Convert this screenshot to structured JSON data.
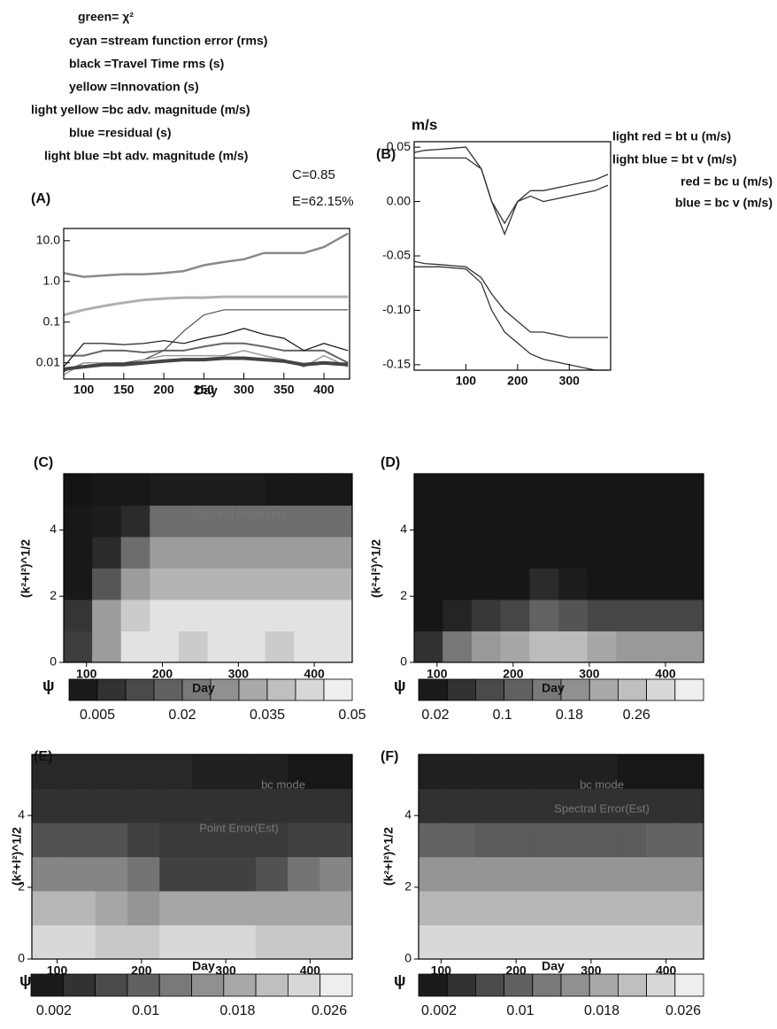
{
  "chart_data": [
    {
      "type": "line",
      "panel_label": "(A)",
      "x_label": "Day",
      "log_y": true,
      "annotations": [
        "C=0.85",
        "E=62.15%"
      ],
      "x": [
        75,
        100,
        125,
        150,
        175,
        200,
        225,
        250,
        275,
        300,
        325,
        350,
        375,
        400,
        430
      ],
      "xlim": [
        75,
        432
      ],
      "xticks": [
        100,
        150,
        200,
        250,
        300,
        350,
        400
      ],
      "ylim": [
        0.004,
        20
      ],
      "yticks": [
        0.01,
        0.1,
        {
          "value": 1,
          "label": "1.0"
        },
        {
          "value": 10,
          "label": "10.0"
        }
      ],
      "series": [
        {
          "name": "green= χ²",
          "color": "#8a8a8a",
          "values": [
            1.6,
            1.3,
            1.4,
            1.5,
            1.5,
            1.6,
            1.8,
            2.5,
            3,
            3.5,
            5,
            5,
            5,
            7,
            15
          ]
        },
        {
          "name": "cyan =stream function error (rms)",
          "color": "#b0b0b0",
          "values": [
            0.15,
            0.2,
            0.25,
            0.3,
            0.35,
            0.38,
            0.4,
            0.4,
            0.42,
            0.42,
            0.42,
            0.42,
            0.42,
            0.42,
            0.42
          ]
        },
        {
          "name": "black =Travel Time rms (s)",
          "color": "#333333",
          "values": [
            0.006,
            0.01,
            0.01,
            0.01,
            0.012,
            0.02,
            0.06,
            0.15,
            0.2,
            0.2,
            0.2,
            0.2,
            0.2,
            0.2,
            0.2
          ]
        },
        {
          "name": "yellow =Innovation (s)",
          "color": "#666666",
          "values": [
            0.015,
            0.015,
            0.02,
            0.02,
            0.018,
            0.02,
            0.02,
            0.025,
            0.03,
            0.03,
            0.025,
            0.02,
            0.02,
            0.02,
            0.01
          ]
        },
        {
          "name": "light yellow =bc adv. magnitude (m/s)",
          "color": "#9a9a9a",
          "values": [
            0.005,
            0.01,
            0.01,
            0.009,
            0.012,
            0.015,
            0.015,
            0.015,
            0.015,
            0.02,
            0.015,
            0.012,
            0.008,
            0.015,
            0.008
          ]
        },
        {
          "name": "blue =residual (s)",
          "color": "#111111",
          "values": [
            0.008,
            0.03,
            0.03,
            0.028,
            0.03,
            0.035,
            0.03,
            0.04,
            0.05,
            0.07,
            0.05,
            0.04,
            0.02,
            0.03,
            0.02
          ]
        },
        {
          "name": "light blue =bt adv. magnitude (m/s)",
          "color": "#444444",
          "values": [
            0.007,
            0.008,
            0.009,
            0.009,
            0.01,
            0.011,
            0.012,
            0.012,
            0.013,
            0.013,
            0.012,
            0.011,
            0.009,
            0.01,
            0.009
          ]
        }
      ]
    },
    {
      "type": "line",
      "panel_label": "(B)",
      "y_label": "m/s",
      "x": [
        0,
        20,
        50,
        100,
        130,
        150,
        175,
        200,
        225,
        250,
        300,
        350,
        375
      ],
      "xlim": [
        0,
        380
      ],
      "xticks": [
        100,
        200,
        300
      ],
      "ylim": [
        -0.155,
        0.055
      ],
      "yticks": [
        -0.15,
        {
          "value": -0.1,
          "label": "-0.10"
        },
        -0.05,
        {
          "value": 0,
          "label": "0.00"
        },
        0.05
      ],
      "series": [
        {
          "name": "light red = bt u  (m/s)",
          "color": "#333333",
          "values": [
            0.045,
            0.047,
            0.048,
            0.05,
            0.03,
            0.0,
            -0.02,
            0.0,
            0.01,
            0.01,
            0.015,
            0.02,
            0.025
          ]
        },
        {
          "name": "light blue = bt v  (m/s)",
          "color": "#333333",
          "values": [
            0.04,
            0.04,
            0.04,
            0.04,
            0.03,
            0.0,
            -0.03,
            0.0,
            0.005,
            0.0,
            0.005,
            0.01,
            0.015
          ]
        },
        {
          "name": "red = bc u  (m/s)",
          "color": "#333333",
          "values": [
            -0.055,
            -0.057,
            -0.058,
            -0.06,
            -0.07,
            -0.085,
            -0.1,
            -0.11,
            -0.12,
            -0.12,
            -0.125,
            -0.125,
            -0.125
          ]
        },
        {
          "name": "blue = bc v  (m/s)",
          "color": "#333333",
          "values": [
            -0.06,
            -0.06,
            -0.06,
            -0.062,
            -0.075,
            -0.1,
            -0.12,
            -0.13,
            -0.14,
            -0.145,
            -0.15,
            -0.155,
            -0.155
          ]
        }
      ]
    },
    {
      "type": "heatmap",
      "panel_label": "(C)",
      "x_label": "Day",
      "y_label": "(k²+l²)^1/2",
      "colorbar_label": "ψ",
      "annotations": [
        "Spectral Amplitude"
      ],
      "x": [
        89,
        127,
        165,
        203,
        241,
        279,
        317,
        355,
        393,
        431
      ],
      "y": [
        0.475,
        1.425,
        2.375,
        3.325,
        4.275,
        5.225
      ],
      "xlim": [
        70,
        450
      ],
      "xticks": [
        100,
        200,
        300,
        400
      ],
      "ylim": [
        0,
        5.7
      ],
      "yticks": [
        0,
        2,
        4
      ],
      "clim": [
        0,
        0.05
      ],
      "cbar_ticks": [
        0.005,
        0.02,
        0.035,
        0.05
      ],
      "z": [
        [
          0.01,
          0.03,
          0.045,
          0.045,
          0.04,
          0.045,
          0.045,
          0.04,
          0.045,
          0.045
        ],
        [
          0.008,
          0.03,
          0.04,
          0.045,
          0.045,
          0.045,
          0.045,
          0.045,
          0.045,
          0.045
        ],
        [
          0.002,
          0.015,
          0.03,
          0.035,
          0.035,
          0.035,
          0.035,
          0.035,
          0.035,
          0.035
        ],
        [
          0.002,
          0.006,
          0.02,
          0.03,
          0.03,
          0.03,
          0.03,
          0.03,
          0.03,
          0.03
        ],
        [
          0.002,
          0.003,
          0.006,
          0.02,
          0.02,
          0.02,
          0.02,
          0.02,
          0.02,
          0.02
        ],
        [
          0.001,
          0.002,
          0.002,
          0.003,
          0.003,
          0.003,
          0.003,
          0.002,
          0.002,
          0.002
        ]
      ]
    },
    {
      "type": "heatmap",
      "panel_label": "(D)",
      "x_label": "Day",
      "y_label": "(k²+l²)^1/2",
      "colorbar_label": "ψ",
      "x": [
        89,
        127,
        165,
        203,
        241,
        279,
        317,
        355,
        393,
        431
      ],
      "y": [
        0.475,
        1.425,
        2.375,
        3.325,
        4.275,
        5.225
      ],
      "xlim": [
        70,
        450
      ],
      "xticks": [
        100,
        200,
        300,
        400
      ],
      "ylim": [
        0,
        5.7
      ],
      "yticks": [
        0,
        2,
        4
      ],
      "clim": [
        0,
        0.34
      ],
      "cbar_ticks": [
        0.02,
        0.1,
        0.18,
        0.26
      ],
      "z": [
        [
          0.05,
          0.15,
          0.2,
          0.22,
          0.25,
          0.25,
          0.22,
          0.2,
          0.2,
          0.2
        ],
        [
          0.01,
          0.03,
          0.06,
          0.08,
          0.12,
          0.1,
          0.08,
          0.08,
          0.08,
          0.08
        ],
        [
          0.01,
          0.01,
          0.01,
          0.01,
          0.04,
          0.02,
          0.01,
          0.01,
          0.01,
          0.01
        ],
        [
          0.01,
          0.01,
          0.01,
          0.01,
          0.01,
          0.01,
          0.01,
          0.01,
          0.01,
          0.01
        ],
        [
          0.01,
          0.01,
          0.01,
          0.01,
          0.01,
          0.01,
          0.01,
          0.01,
          0.01,
          0.01
        ],
        [
          0.01,
          0.01,
          0.01,
          0.01,
          0.01,
          0.01,
          0.01,
          0.01,
          0.01,
          0.01
        ]
      ]
    },
    {
      "type": "heatmap",
      "panel_label": "(E)",
      "x_label": "Day",
      "y_label": "(k²+l²)^1/2",
      "colorbar_label": "ψ",
      "annotations": [
        "bc mode",
        "Point Error(Est)"
      ],
      "x": [
        89,
        127,
        165,
        203,
        241,
        279,
        317,
        355,
        393,
        431
      ],
      "y": [
        0.475,
        1.425,
        2.375,
        3.325,
        4.275,
        5.225
      ],
      "xlim": [
        70,
        450
      ],
      "xticks": [
        100,
        200,
        300,
        400
      ],
      "ylim": [
        0,
        5.7
      ],
      "yticks": [
        0,
        2,
        4
      ],
      "clim": [
        0,
        0.028
      ],
      "cbar_ticks": [
        0.002,
        0.01,
        0.018,
        0.026
      ],
      "z": [
        [
          0.024,
          0.024,
          0.022,
          0.022,
          0.024,
          0.024,
          0.024,
          0.022,
          0.022,
          0.022
        ],
        [
          0.02,
          0.02,
          0.018,
          0.016,
          0.018,
          0.018,
          0.018,
          0.018,
          0.018,
          0.018
        ],
        [
          0.014,
          0.014,
          0.014,
          0.012,
          0.006,
          0.006,
          0.006,
          0.008,
          0.012,
          0.014
        ],
        [
          0.008,
          0.008,
          0.008,
          0.006,
          0.005,
          0.005,
          0.005,
          0.005,
          0.006,
          0.006
        ],
        [
          0.004,
          0.004,
          0.004,
          0.004,
          0.004,
          0.004,
          0.004,
          0.004,
          0.004,
          0.004
        ],
        [
          0.003,
          0.003,
          0.003,
          0.003,
          0.003,
          0.002,
          0.002,
          0.002,
          0.001,
          0.001
        ]
      ]
    },
    {
      "type": "heatmap",
      "panel_label": "(F)",
      "x_label": "Day",
      "y_label": "(k²+l²)^1/2",
      "colorbar_label": "ψ",
      "annotations": [
        "bc mode",
        "Spectral Error(Est)"
      ],
      "x": [
        89,
        127,
        165,
        203,
        241,
        279,
        317,
        355,
        393,
        431
      ],
      "y": [
        0.475,
        1.425,
        2.375,
        3.325,
        4.275,
        5.225
      ],
      "xlim": [
        70,
        450
      ],
      "xticks": [
        100,
        200,
        300,
        400
      ],
      "ylim": [
        0,
        5.7
      ],
      "yticks": [
        0,
        2,
        4
      ],
      "clim": [
        0,
        0.028
      ],
      "cbar_ticks": [
        0.002,
        0.01,
        0.018,
        0.026
      ],
      "z": [
        [
          0.024,
          0.024,
          0.024,
          0.024,
          0.024,
          0.024,
          0.024,
          0.024,
          0.024,
          0.024
        ],
        [
          0.02,
          0.02,
          0.02,
          0.02,
          0.02,
          0.02,
          0.02,
          0.02,
          0.02,
          0.02
        ],
        [
          0.016,
          0.016,
          0.016,
          0.016,
          0.016,
          0.016,
          0.016,
          0.016,
          0.016,
          0.016
        ],
        [
          0.01,
          0.01,
          0.009,
          0.009,
          0.009,
          0.009,
          0.009,
          0.009,
          0.01,
          0.01
        ],
        [
          0.004,
          0.004,
          0.004,
          0.004,
          0.004,
          0.004,
          0.004,
          0.004,
          0.004,
          0.004
        ],
        [
          0.002,
          0.002,
          0.002,
          0.002,
          0.002,
          0.002,
          0.002,
          0.001,
          0.001,
          0.001
        ]
      ]
    }
  ]
}
